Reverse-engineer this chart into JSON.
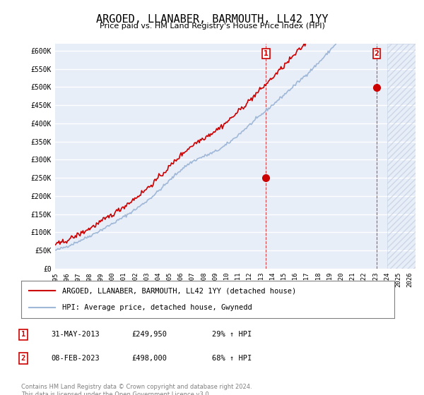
{
  "title": "ARGOED, LLANABER, BARMOUTH, LL42 1YY",
  "subtitle": "Price paid vs. HM Land Registry's House Price Index (HPI)",
  "ylim": [
    0,
    620000
  ],
  "yticks": [
    0,
    50000,
    100000,
    150000,
    200000,
    250000,
    300000,
    350000,
    400000,
    450000,
    500000,
    550000,
    600000
  ],
  "xlim_start": 1995.0,
  "xlim_end": 2026.5,
  "background_color": "#ffffff",
  "plot_bg_color": "#e8eef8",
  "grid_color": "#ffffff",
  "hpi_color": "#a0b8d8",
  "price_color": "#cc0000",
  "marker1_date": 2013.42,
  "marker1_value": 249950,
  "marker1_label": "1",
  "marker2_date": 2023.1,
  "marker2_value": 498000,
  "marker2_label": "2",
  "vline1_x": 2013.42,
  "vline2_x": 2023.1,
  "legend_line1": "ARGOED, LLANABER, BARMOUTH, LL42 1YY (detached house)",
  "legend_line2": "HPI: Average price, detached house, Gwynedd",
  "table_data": [
    {
      "num": "1",
      "date": "31-MAY-2013",
      "price": "£249,950",
      "change": "29% ↑ HPI"
    },
    {
      "num": "2",
      "date": "08-FEB-2023",
      "price": "£498,000",
      "change": "68% ↑ HPI"
    }
  ],
  "footnote": "Contains HM Land Registry data © Crown copyright and database right 2024.\nThis data is licensed under the Open Government Licence v3.0.",
  "xtick_years": [
    1995,
    1996,
    1997,
    1998,
    1999,
    2000,
    2001,
    2002,
    2003,
    2004,
    2005,
    2006,
    2007,
    2008,
    2009,
    2010,
    2011,
    2012,
    2013,
    2014,
    2015,
    2016,
    2017,
    2018,
    2019,
    2020,
    2021,
    2022,
    2023,
    2024,
    2025,
    2026
  ],
  "hatch_start": 2024.0
}
